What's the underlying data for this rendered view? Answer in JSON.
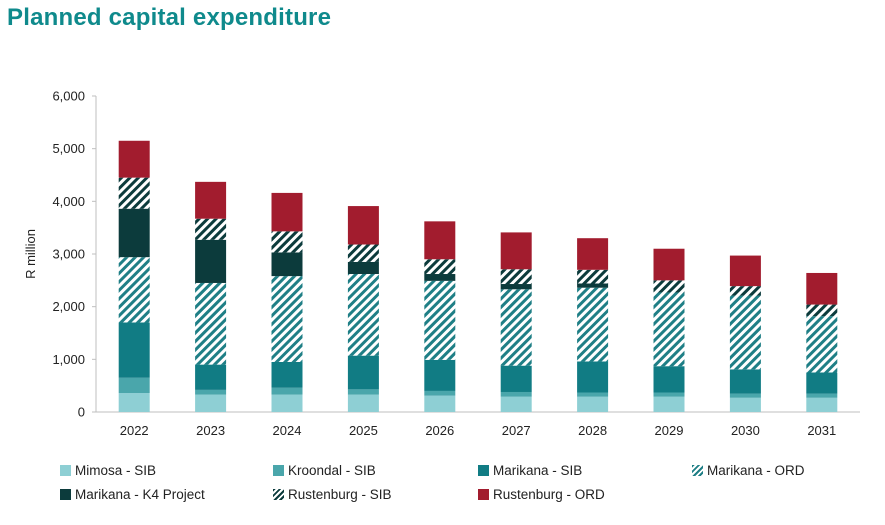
{
  "title": "Planned capital expenditure",
  "chart_data": {
    "type": "bar",
    "stacked": true,
    "categories": [
      "2022",
      "2023",
      "2024",
      "2025",
      "2026",
      "2027",
      "2028",
      "2029",
      "2030",
      "2031"
    ],
    "ylabel": "R million",
    "xlabel": "",
    "ylim": [
      0,
      6000
    ],
    "yticks": [
      "0",
      "1,000",
      "2,000",
      "3,000",
      "4,000",
      "5,000",
      "6,000"
    ],
    "grid": false,
    "legend_position": "bottom",
    "series": [
      {
        "name": "Mimosa - SIB",
        "color": "#8ecfd4",
        "pattern": "solid",
        "values": [
          360,
          330,
          330,
          330,
          310,
          290,
          290,
          290,
          270,
          270
        ]
      },
      {
        "name": "Kroondal - SIB",
        "color": "#4aa6ab",
        "pattern": "solid",
        "values": [
          290,
          90,
          130,
          100,
          90,
          90,
          80,
          80,
          80,
          80
        ]
      },
      {
        "name": "Marikana - SIB",
        "color": "#117c84",
        "pattern": "solid",
        "values": [
          1050,
          480,
          490,
          640,
          590,
          500,
          590,
          500,
          460,
          400
        ]
      },
      {
        "name": "Marikana - ORD",
        "color": "#1f7f86",
        "pattern": "hatch",
        "values": [
          1240,
          1550,
          1630,
          1550,
          1500,
          1450,
          1400,
          1400,
          1400,
          1070
        ]
      },
      {
        "name": "Marikana - K4 Project",
        "color": "#0c3b3c",
        "pattern": "solid",
        "values": [
          920,
          820,
          450,
          230,
          130,
          100,
          80,
          0,
          0,
          0
        ]
      },
      {
        "name": "Rustenburg - SIB",
        "color": "#0c3b3c",
        "pattern": "hatch",
        "values": [
          590,
          400,
          400,
          330,
          280,
          280,
          260,
          230,
          180,
          220
        ]
      },
      {
        "name": "Rustenburg - ORD",
        "color": "#a21c2e",
        "pattern": "solid",
        "values": [
          700,
          700,
          730,
          730,
          720,
          700,
          600,
          600,
          580,
          600
        ]
      }
    ]
  }
}
